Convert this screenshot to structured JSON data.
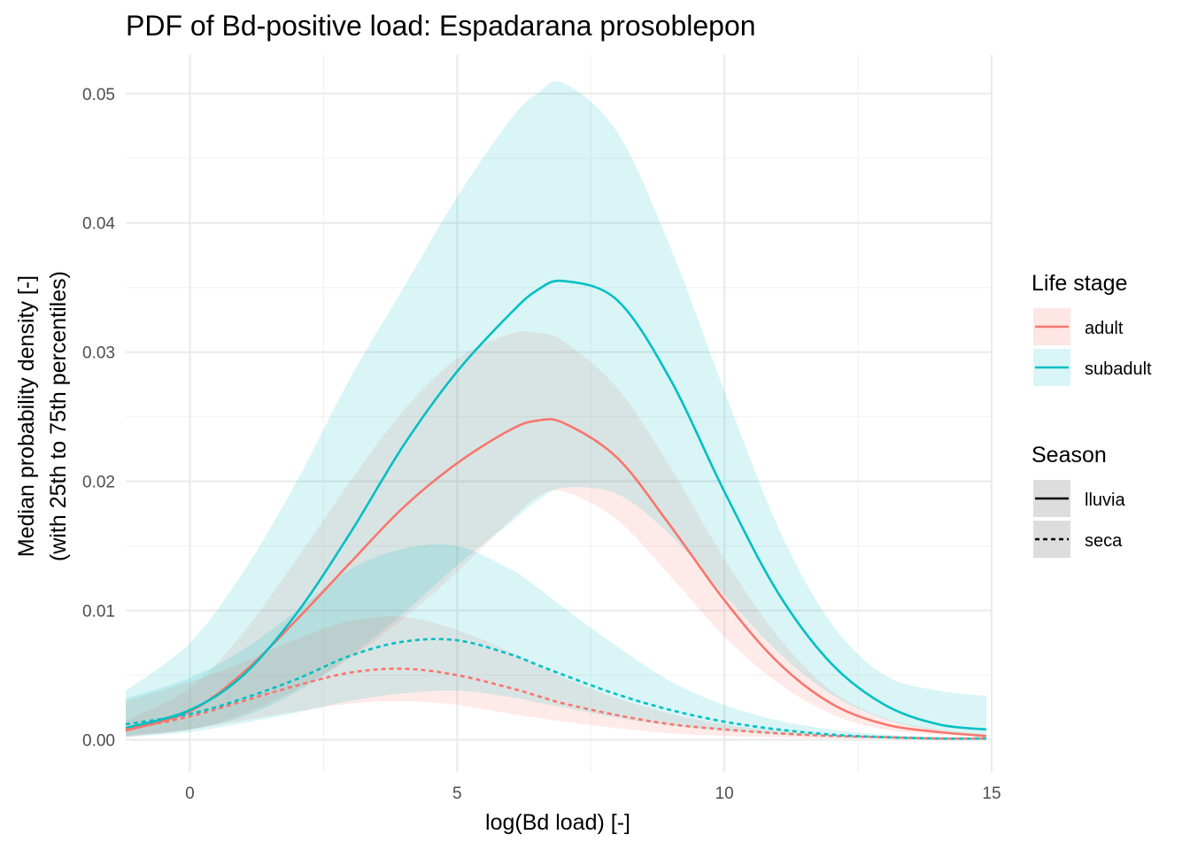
{
  "chart_data": {
    "type": "line",
    "title": "PDF of Bd-positive load: Espadarana prosoblepon",
    "xlabel": "log(Bd load) [-]",
    "ylabel_line1": "Median probability density [-]",
    "ylabel_line2": "(with 25th to 75th percentiles)",
    "xlim": [
      -1.2,
      15.0
    ],
    "ylim": [
      -0.0025,
      0.053
    ],
    "x_ticks": [
      0,
      5,
      10,
      15
    ],
    "x_tick_labels": [
      "0",
      "5",
      "10",
      "15"
    ],
    "y_ticks": [
      0,
      0.01,
      0.02,
      0.03,
      0.04,
      0.05
    ],
    "y_tick_labels": [
      "0.00",
      "0.01",
      "0.02",
      "0.03",
      "0.04",
      "0.05"
    ],
    "grid": true,
    "legend_position": "right",
    "legend": {
      "life_stage": {
        "title": "Life stage",
        "items": [
          {
            "label": "adult",
            "color": "#F8766D"
          },
          {
            "label": "subadult",
            "color": "#00BFC4"
          }
        ]
      },
      "season": {
        "title": "Season",
        "items": [
          {
            "label": "lluvia",
            "linetype": "solid"
          },
          {
            "label": "seca",
            "linetype": "dashed"
          }
        ]
      }
    },
    "x": [
      -1.2,
      0,
      1,
      2,
      3,
      4,
      5,
      6,
      6.5,
      7,
      8,
      9,
      10,
      11,
      12,
      13,
      14,
      14.9
    ],
    "series": [
      {
        "life_stage": "adult",
        "season": "lluvia",
        "color": "#F8766D",
        "linetype": "solid",
        "median": [
          0.0007,
          0.0022,
          0.0052,
          0.0093,
          0.0137,
          0.018,
          0.0214,
          0.024,
          0.0247,
          0.0245,
          0.0218,
          0.0165,
          0.0108,
          0.006,
          0.0028,
          0.0012,
          0.0006,
          0.0003
        ],
        "lower": [
          0.0003,
          0.0008,
          0.002,
          0.0039,
          0.0063,
          0.0094,
          0.013,
          0.017,
          0.0188,
          0.0192,
          0.017,
          0.0126,
          0.008,
          0.0044,
          0.002,
          0.0008,
          0.0004,
          0.0002
        ],
        "upper": [
          0.0015,
          0.004,
          0.0083,
          0.014,
          0.02,
          0.0255,
          0.0295,
          0.0314,
          0.0315,
          0.0308,
          0.0272,
          0.021,
          0.014,
          0.008,
          0.0038,
          0.0017,
          0.0008,
          0.0004
        ]
      },
      {
        "life_stage": "subadult",
        "season": "lluvia",
        "color": "#00BFC4",
        "linetype": "solid",
        "median": [
          0.0009,
          0.0023,
          0.005,
          0.0098,
          0.016,
          0.0228,
          0.0285,
          0.033,
          0.0348,
          0.0355,
          0.034,
          0.0278,
          0.0192,
          0.0114,
          0.0059,
          0.0027,
          0.0012,
          0.0008
        ],
        "lower": [
          0.0003,
          0.0008,
          0.0018,
          0.0037,
          0.0065,
          0.0098,
          0.0135,
          0.0168,
          0.0185,
          0.0195,
          0.019,
          0.0158,
          0.0112,
          0.0068,
          0.0035,
          0.0016,
          0.0007,
          0.0004
        ],
        "upper": [
          0.0038,
          0.0075,
          0.013,
          0.02,
          0.028,
          0.035,
          0.042,
          0.048,
          0.05,
          0.0508,
          0.047,
          0.038,
          0.027,
          0.0165,
          0.009,
          0.005,
          0.0038,
          0.0034
        ]
      },
      {
        "life_stage": "adult",
        "season": "seca",
        "color": "#F8766D",
        "linetype": "dashed",
        "median": [
          0.0008,
          0.0018,
          0.003,
          0.0042,
          0.0052,
          0.0055,
          0.005,
          0.004,
          0.0034,
          0.0028,
          0.0019,
          0.0012,
          0.0008,
          0.0005,
          0.0003,
          0.0002,
          0.0001,
          0.0001
        ],
        "lower": [
          0.0002,
          0.0008,
          0.0015,
          0.0022,
          0.0028,
          0.003,
          0.0027,
          0.002,
          0.0017,
          0.0014,
          0.0009,
          0.0005,
          0.0003,
          0.0002,
          0.0001,
          0.0001,
          0.0,
          0.0
        ],
        "upper": [
          0.003,
          0.0045,
          0.006,
          0.0078,
          0.0092,
          0.0095,
          0.0085,
          0.0068,
          0.0058,
          0.0048,
          0.0032,
          0.002,
          0.0012,
          0.0007,
          0.0004,
          0.0002,
          0.0001,
          0.0001
        ]
      },
      {
        "life_stage": "subadult",
        "season": "seca",
        "color": "#00BFC4",
        "linetype": "dashed",
        "median": [
          0.0012,
          0.002,
          0.0032,
          0.0047,
          0.0065,
          0.0076,
          0.0077,
          0.0066,
          0.0058,
          0.005,
          0.0035,
          0.0023,
          0.0014,
          0.0008,
          0.0004,
          0.0002,
          0.0001,
          0.0001
        ],
        "lower": [
          0.0002,
          0.0006,
          0.0013,
          0.0021,
          0.003,
          0.0036,
          0.0038,
          0.0033,
          0.0029,
          0.0025,
          0.0017,
          0.0011,
          0.0007,
          0.0004,
          0.0002,
          0.0001,
          0.0,
          0.0
        ],
        "upper": [
          0.0032,
          0.0048,
          0.007,
          0.01,
          0.0132,
          0.0148,
          0.015,
          0.0132,
          0.0118,
          0.0102,
          0.0072,
          0.0045,
          0.0027,
          0.0015,
          0.0008,
          0.0004,
          0.0002,
          0.0001
        ]
      }
    ]
  }
}
